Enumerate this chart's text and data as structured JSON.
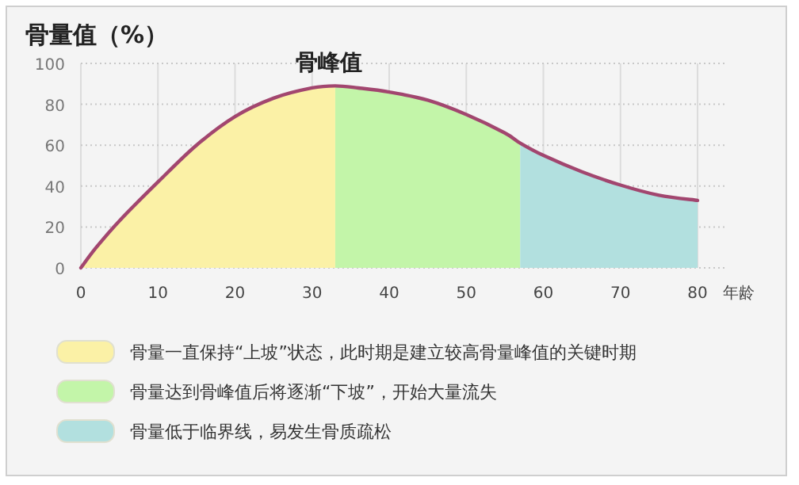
{
  "chart_data": {
    "type": "area",
    "title": "骨量值（%）",
    "xlabel": "年龄",
    "xlim": [
      0,
      80
    ],
    "xticks": [
      0,
      10,
      20,
      30,
      40,
      50,
      60,
      70,
      80
    ],
    "ylim": [
      0,
      100
    ],
    "yticks": [
      0,
      20,
      40,
      60,
      80,
      100
    ],
    "grid": true,
    "legend": "bottom",
    "annotations": [
      {
        "text": "骨峰值",
        "x": 33,
        "y": 89
      }
    ],
    "series": [
      {
        "name": "骨量一直保持“上坡”状态，此时期是建立较高骨量峰值的关键时期",
        "color": "#fbf1a6",
        "x": [
          0,
          2,
          5,
          10,
          15,
          20,
          25,
          30,
          33
        ],
        "values": [
          0,
          10,
          23,
          42,
          60,
          74,
          83,
          88,
          89
        ]
      },
      {
        "name": "骨量达到骨峰值后将逐渐“下坡”，开始大量流失",
        "color": "#c3f5a9",
        "x": [
          33,
          36,
          40,
          45,
          50,
          55,
          57
        ],
        "values": [
          89,
          88,
          86,
          82,
          75,
          66,
          61
        ]
      },
      {
        "name": "骨量低于临界线，易发生骨质疏松",
        "color": "#b2e0df",
        "x": [
          57,
          60,
          65,
          70,
          75,
          80
        ],
        "values": [
          61,
          55,
          47,
          40.5,
          35.5,
          33
        ]
      },
      {
        "type": "line",
        "color": "#a2466f",
        "x": [
          0,
          2,
          5,
          10,
          15,
          20,
          25,
          30,
          33,
          36,
          40,
          45,
          50,
          55,
          57,
          60,
          65,
          70,
          75,
          80
        ],
        "values": [
          0,
          10,
          23,
          42,
          60,
          74,
          83,
          88,
          89,
          88,
          86,
          82,
          75,
          66,
          61,
          55,
          47,
          40.5,
          35.5,
          33
        ]
      }
    ]
  }
}
